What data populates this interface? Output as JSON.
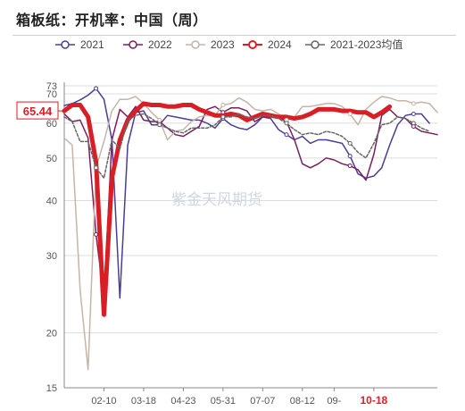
{
  "title": "箱板纸：开机率：中国（周）",
  "watermark": "紫金天风期货",
  "chart_data": {
    "type": "line",
    "x_ticks": [
      "02-10",
      "03-18",
      "04-23",
      "05-31",
      "07-07",
      "08-12",
      "09-",
      "10-18"
    ],
    "x_tick_weeks": [
      6,
      11,
      16,
      21,
      26,
      31,
      35,
      40
    ],
    "highlight_tick": "10-18",
    "y_ticks": [
      15,
      20,
      30,
      40,
      50,
      60,
      70,
      73
    ],
    "ylim": [
      15,
      73
    ],
    "y_scale": "log",
    "last_value_label": "65.44",
    "legend_position": "top",
    "series": [
      {
        "name": "2021",
        "color": "#4b3d94",
        "width": 1.5,
        "dash": "",
        "values": [
          65.8,
          66.5,
          67.8,
          69.5,
          72.0,
          68.0,
          55.0,
          24.0,
          53.5,
          63.5,
          64.0,
          59.5,
          59.5,
          62.5,
          62.0,
          61.5,
          61.0,
          61.0,
          60.0,
          58.5,
          61.5,
          59.5,
          58.5,
          58.0,
          59.5,
          62.0,
          61.5,
          58.0,
          56.5,
          55.0,
          56.0,
          54.0,
          55.0,
          55.0,
          54.5,
          54.0,
          50.5,
          46.0,
          45.0,
          45.5,
          47.5,
          53.5,
          59.5,
          62.5,
          63.0,
          63.0,
          60.0
        ]
      },
      {
        "name": "2022",
        "color": "#7a1e5c",
        "width": 1.5,
        "dash": "",
        "values": [
          63.0,
          60.5,
          61.0,
          55.5,
          33.5,
          24.0,
          55.0,
          64.5,
          62.0,
          65.5,
          61.0,
          60.5,
          60.5,
          58.5,
          56.5,
          56.0,
          57.5,
          59.0,
          64.5,
          65.5,
          63.5,
          65.0,
          65.0,
          64.0,
          60.5,
          62.0,
          62.0,
          62.0,
          60.5,
          55.0,
          48.5,
          47.5,
          48.5,
          50.0,
          49.5,
          48.5,
          48.0,
          47.0,
          44.5,
          51.0,
          62.5,
          64.5,
          62.0,
          61.5,
          59.0,
          57.5,
          57.0,
          56.5
        ]
      },
      {
        "name": "2023",
        "color": "#c4b5a5",
        "width": 1.5,
        "dash": "",
        "values": [
          55.5,
          53.5,
          25.0,
          16.5,
          47.5,
          54.5,
          64.0,
          68.0,
          68.0,
          69.0,
          66.5,
          63.5,
          61.0,
          55.0,
          57.5,
          58.0,
          60.5,
          62.0,
          62.5,
          62.5,
          66.0,
          66.5,
          68.5,
          67.0,
          64.5,
          64.0,
          64.5,
          63.0,
          61.0,
          62.0,
          65.5,
          65.5,
          66.0,
          66.5,
          66.5,
          65.5,
          63.0,
          59.5,
          64.5,
          67.0,
          69.0,
          68.5,
          67.5,
          67.5,
          66.5,
          67.0,
          66.5,
          63.5
        ]
      },
      {
        "name": "2024",
        "color": "#d81f26",
        "width": 5,
        "dash": "",
        "values": [
          64.0,
          66.0,
          66.0,
          62.0,
          49.0,
          22.0,
          45.0,
          55.0,
          61.0,
          64.0,
          66.5,
          66.0,
          66.0,
          65.5,
          65.5,
          66.0,
          66.0,
          64.5,
          63.5,
          62.5,
          62.5,
          63.0,
          62.5,
          61.0,
          62.0,
          63.0,
          62.5,
          62.0,
          62.0,
          61.5,
          62.0,
          63.0,
          64.5,
          64.5,
          64.5,
          64.0,
          64.0,
          63.5,
          63.5,
          62.0,
          63.5,
          65.44
        ]
      },
      {
        "name": "2021-2023均值",
        "color": "#666666",
        "width": 1.5,
        "dash": "3,2",
        "values": [
          62.0,
          60.5,
          54.5,
          54.5,
          47.5,
          45.0,
          55.0,
          52.5,
          61.0,
          62.5,
          63.0,
          61.5,
          59.5,
          58.5,
          57.5,
          57.0,
          58.5,
          58.5,
          58.5,
          59.5,
          62.0,
          62.0,
          63.0,
          62.0,
          61.5,
          62.5,
          62.5,
          61.5,
          60.0,
          58.0,
          56.5,
          57.0,
          56.5,
          57.5,
          57.0,
          56.0,
          54.0,
          51.5,
          50.0,
          54.0,
          59.5,
          60.0,
          62.0,
          61.5,
          60.0,
          58.5,
          57.5
        ]
      }
    ]
  }
}
